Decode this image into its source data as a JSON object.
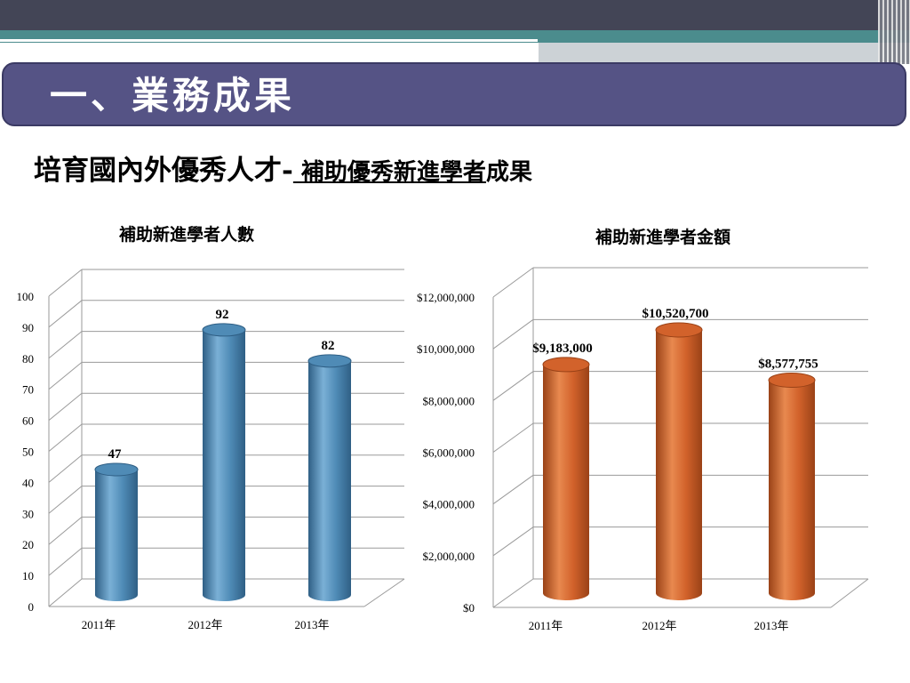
{
  "header": {
    "title": "一、業務成果"
  },
  "subtitle": {
    "main": "培育國內外優秀人才",
    "dash": "-",
    "underlined": " 補助優秀新進學者",
    "suffix": "成果"
  },
  "chart_data": [
    {
      "type": "bar",
      "title": "補助新進學者人數",
      "categories": [
        "2011年",
        "2012年",
        "2013年"
      ],
      "values": [
        47,
        92,
        82
      ],
      "value_labels": [
        "47",
        "92",
        "82"
      ],
      "y_ticks": [
        "0",
        "10",
        "20",
        "30",
        "40",
        "50",
        "60",
        "70",
        "80",
        "90",
        "100"
      ],
      "ylim": [
        0,
        100
      ],
      "grid": true,
      "color": "#4f8bb6",
      "color_light": "#7ab0d6",
      "color_dark": "#2f5f85"
    },
    {
      "type": "bar",
      "title": "補助新進學者金額",
      "categories": [
        "2011年",
        "2012年",
        "2013年"
      ],
      "values": [
        9183000,
        10520700,
        8577755
      ],
      "value_labels": [
        "$9,183,000",
        "$10,520,700",
        "$8,577,755"
      ],
      "y_ticks": [
        "$0",
        "$2,000,000",
        "$4,000,000",
        "$6,000,000",
        "$8,000,000",
        "$10,000,000",
        "$12,000,000"
      ],
      "ylim": [
        0,
        12000000
      ],
      "grid": true,
      "color": "#d2622b",
      "color_light": "#e8894f",
      "color_dark": "#9a4217"
    }
  ]
}
